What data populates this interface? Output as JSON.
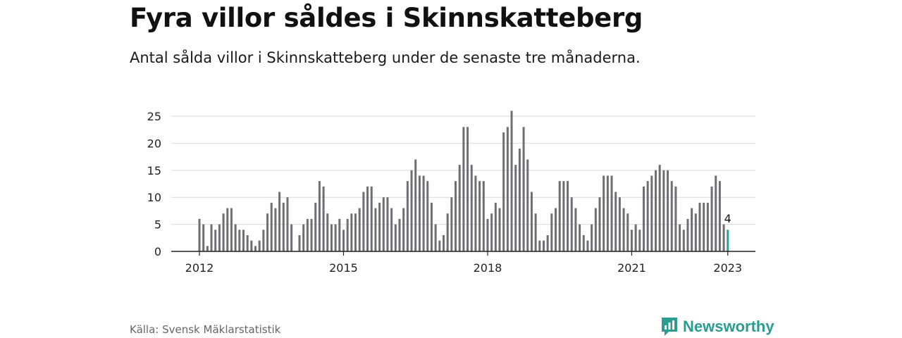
{
  "title": "Fyra villor såldes i Skinnskatteberg",
  "subtitle": "Antal sålda villor i Skinnskatteberg under de senaste tre månaderna.",
  "source": "Källa: Svensk Mäklarstatistik",
  "brand": {
    "name": "Newsworthy",
    "icon": "newsworthy-logo-icon",
    "color": "#2a9d90"
  },
  "chart_data": {
    "type": "bar",
    "bar_color": "#6e6e73",
    "highlight_color": "#1fa59a",
    "ylim": [
      0,
      27
    ],
    "y_ticks": [
      "0",
      "5",
      "10",
      "15",
      "20",
      "25"
    ],
    "x_ticks": [
      {
        "label": "2012",
        "index": 0
      },
      {
        "label": "2015",
        "index": 36
      },
      {
        "label": "2018",
        "index": 72
      },
      {
        "label": "2021",
        "index": 108
      },
      {
        "label": "2023",
        "index": 132
      }
    ],
    "annotation": {
      "label": "4",
      "index": 132
    },
    "highlight_index": 132,
    "values": [
      6,
      5,
      1,
      5,
      4,
      5,
      7,
      8,
      8,
      5,
      4,
      4,
      3,
      2,
      1,
      2,
      4,
      7,
      9,
      8,
      11,
      9,
      10,
      5,
      null,
      3,
      5,
      6,
      6,
      9,
      13,
      12,
      7,
      5,
      5,
      6,
      4,
      6,
      7,
      7,
      8,
      11,
      12,
      12,
      8,
      9,
      10,
      10,
      8,
      5,
      6,
      8,
      13,
      15,
      17,
      14,
      14,
      13,
      9,
      5,
      2,
      3,
      7,
      10,
      13,
      16,
      23,
      23,
      16,
      14,
      13,
      13,
      6,
      7,
      9,
      8,
      22,
      23,
      26,
      16,
      19,
      23,
      17,
      11,
      7,
      2,
      2,
      3,
      7,
      8,
      13,
      13,
      13,
      10,
      8,
      5,
      3,
      2,
      5,
      8,
      10,
      14,
      14,
      14,
      11,
      10,
      8,
      7,
      4,
      5,
      4,
      12,
      13,
      14,
      15,
      16,
      15,
      15,
      13,
      12,
      5,
      4,
      6,
      8,
      7,
      9,
      9,
      9,
      12,
      14,
      13,
      5,
      4
    ]
  }
}
